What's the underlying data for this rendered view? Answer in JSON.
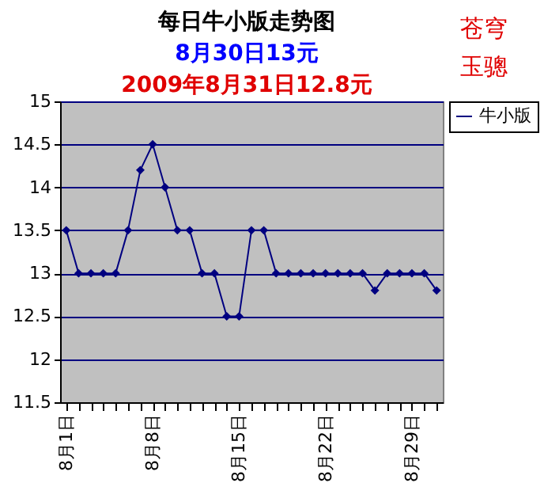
{
  "chart_data": {
    "type": "line",
    "title": "每日牛小版走势图",
    "subtitle": "8月30日13元",
    "annotations": [
      "2009年8月31日12.8元",
      "苍穹",
      "玉骢"
    ],
    "categories": [
      "8月1日",
      null,
      null,
      null,
      null,
      null,
      null,
      "8月8日",
      null,
      null,
      null,
      null,
      null,
      null,
      "8月15日",
      null,
      null,
      null,
      null,
      null,
      null,
      "8月22日",
      null,
      null,
      null,
      null,
      null,
      null,
      "8月29日",
      null,
      null
    ],
    "series": [
      {
        "name": "牛小版",
        "color": "#000080",
        "values": [
          13.5,
          13,
          13,
          13,
          13,
          13.5,
          14.2,
          14.5,
          14,
          13.5,
          13.5,
          13,
          13,
          12.5,
          12.5,
          13.5,
          13.5,
          13,
          13,
          13,
          13,
          13,
          13,
          13,
          13,
          12.8,
          13,
          13,
          13,
          13,
          12.8
        ]
      }
    ],
    "ylim": [
      11.5,
      15
    ],
    "yticks": [
      11.5,
      12,
      12.5,
      13,
      13.5,
      14,
      14.5,
      15
    ],
    "grid": "y",
    "legend": "right",
    "marker": "diamond",
    "line_style": "solid"
  }
}
